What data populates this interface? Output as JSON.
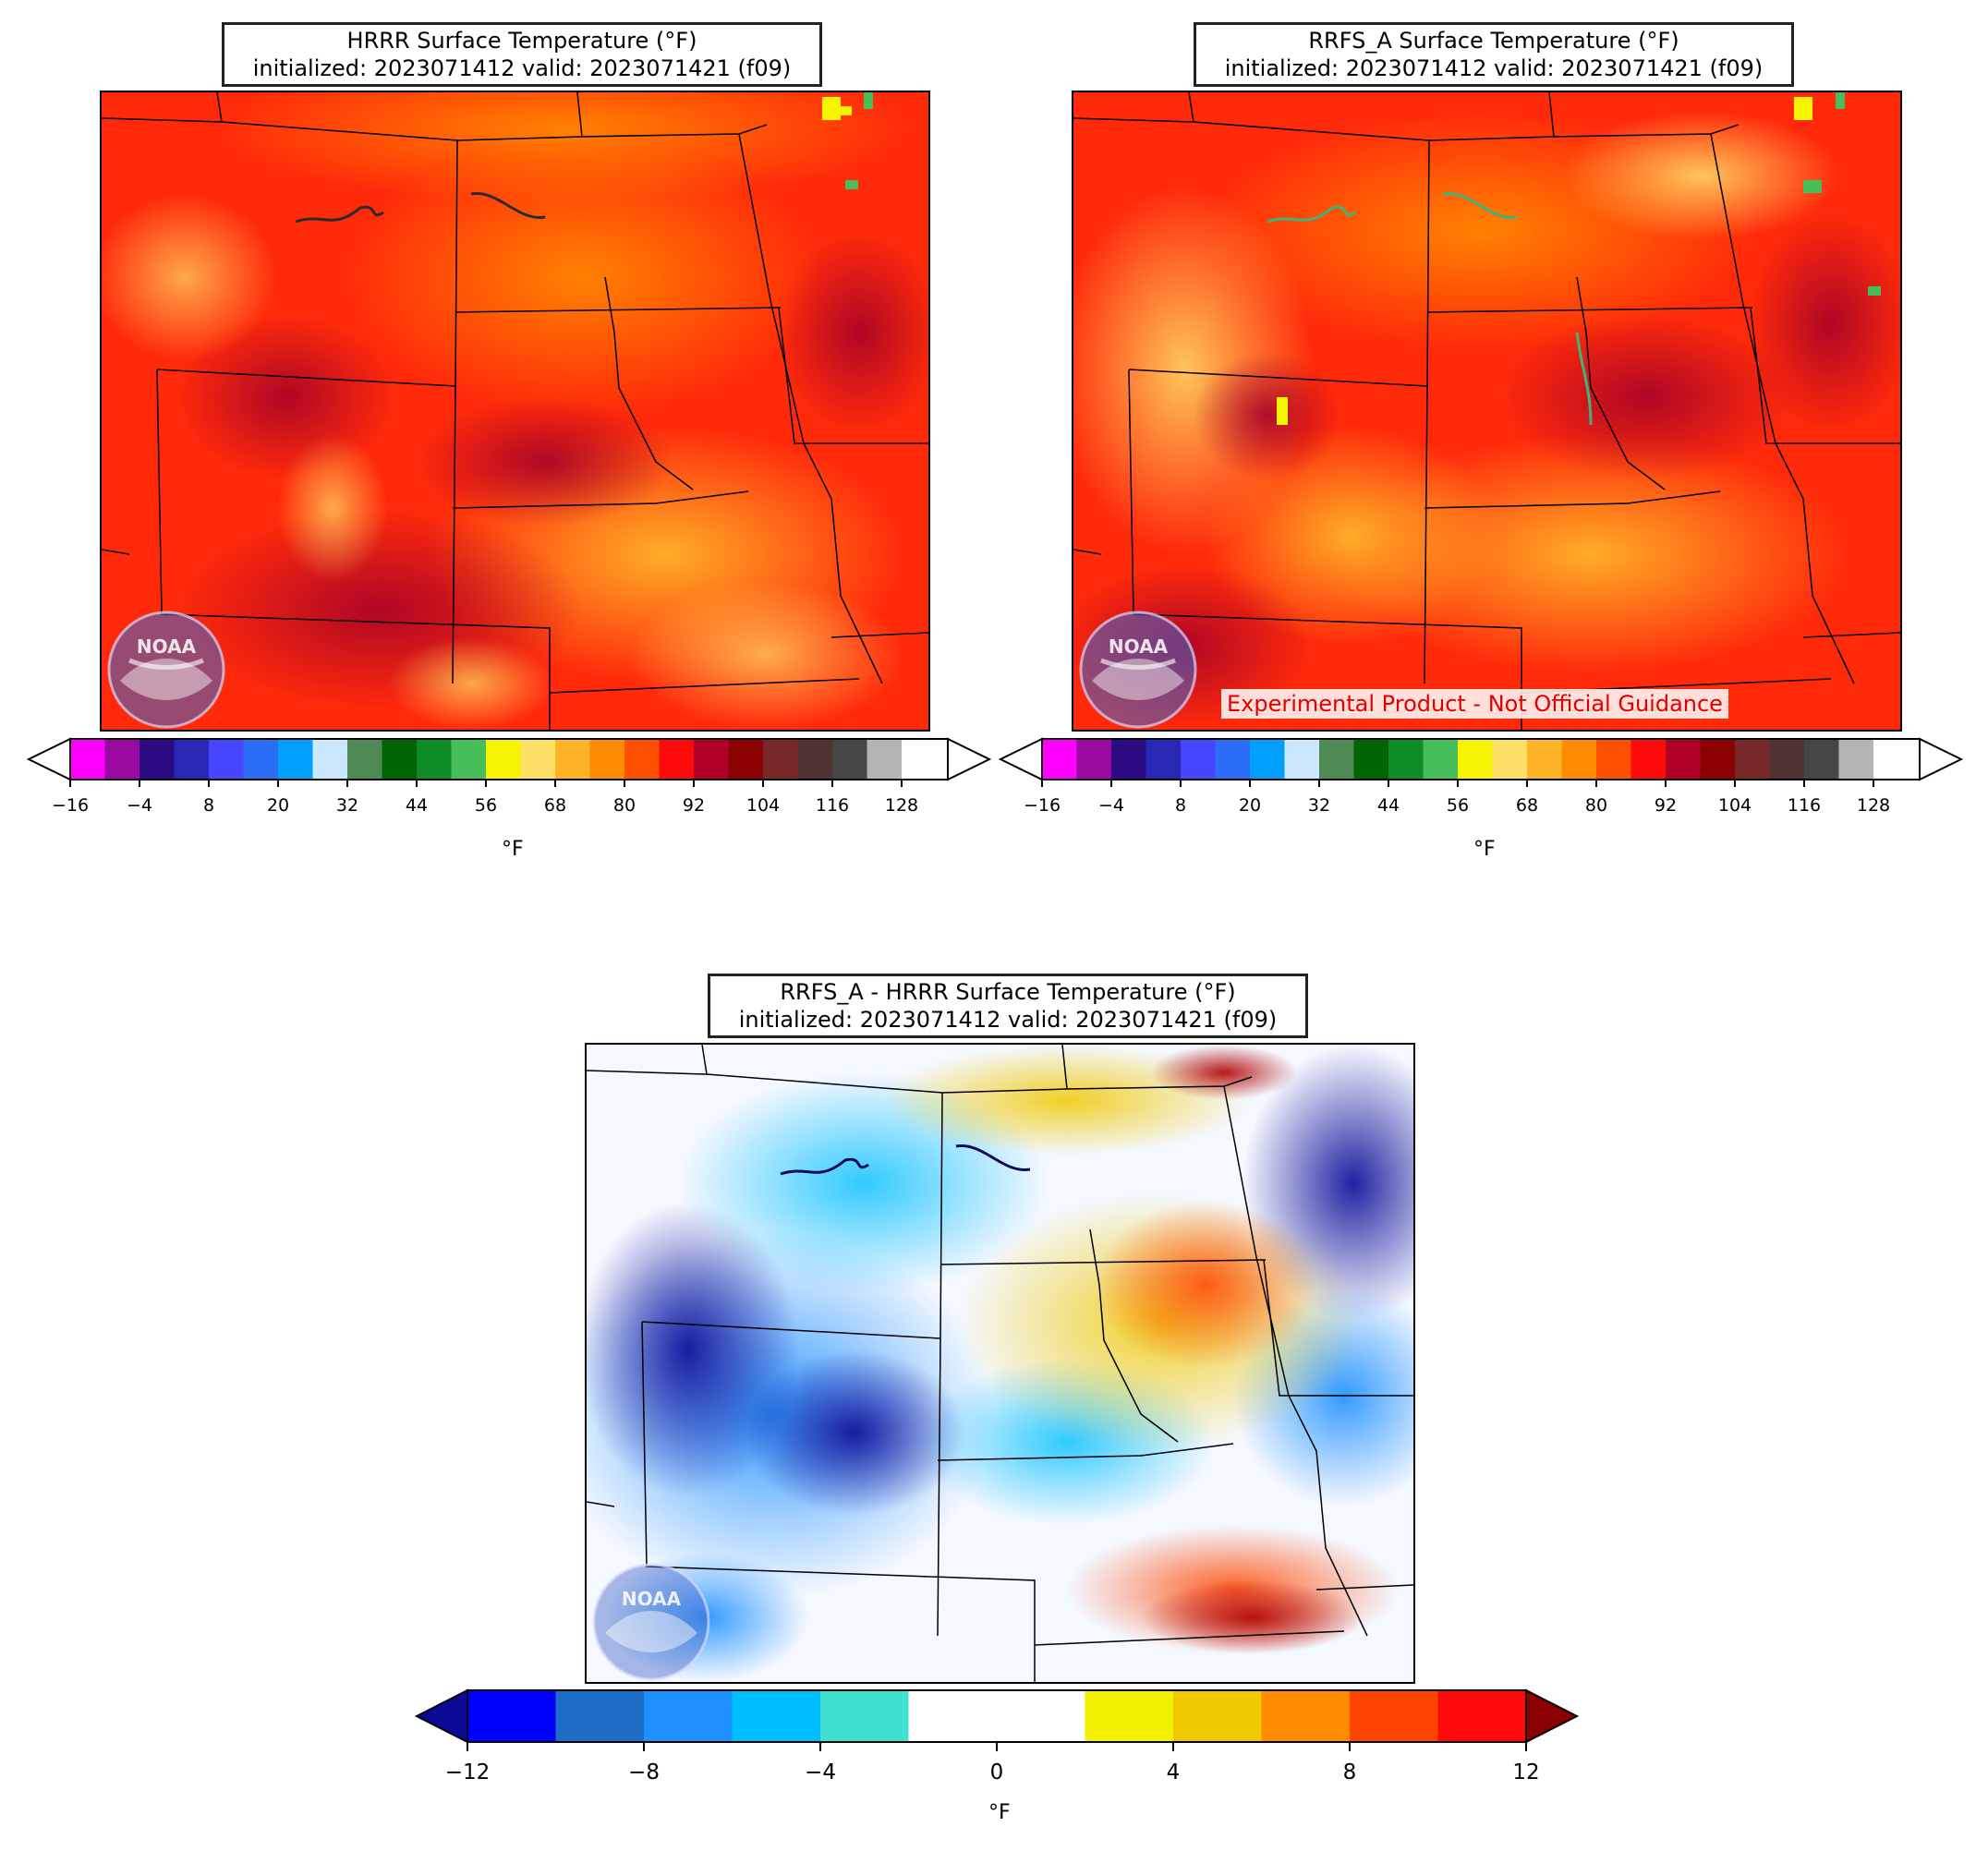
{
  "panels": {
    "hrrr": {
      "title_line1": "HRRR Surface Temperature (°F)",
      "title_line2": "initialized: 2023071412 valid: 2023071421 (f09)",
      "unit": "°F"
    },
    "rrfs": {
      "title_line1": "RRFS_A Surface Temperature (°F)",
      "title_line2": "initialized: 2023071412 valid: 2023071421 (f09)",
      "unit": "°F",
      "warning": "Experimental Product - Not Official Guidance"
    },
    "diff": {
      "title_line1": "RRFS_A - HRRR Surface Temperature (°F)",
      "title_line2": "initialized: 2023071412 valid: 2023071421 (f09)",
      "unit": "°F"
    }
  },
  "logo": {
    "text": "NOAA",
    "icon": "noaa-logo"
  },
  "temp_colorbar": {
    "tick_labels": [
      "−16",
      "−4",
      "8",
      "20",
      "32",
      "44",
      "56",
      "68",
      "80",
      "92",
      "104",
      "116",
      "128"
    ],
    "colors": [
      "#ff00ff",
      "#9a0aa0",
      "#2b0a82",
      "#2828b4",
      "#4646ff",
      "#2b6ef5",
      "#00a0ff",
      "#cce8ff",
      "#4f8a55",
      "#006400",
      "#0e8c28",
      "#46be5a",
      "#f5f500",
      "#ffe066",
      "#ffb428",
      "#ff8c00",
      "#ff5000",
      "#ff0a0a",
      "#b00028",
      "#8b0000",
      "#782828",
      "#503232",
      "#464646",
      "#b4b4b4",
      "#ffffff"
    ]
  },
  "diff_colorbar": {
    "tick_labels": [
      "−12",
      "−8",
      "−4",
      "0",
      "4",
      "8",
      "12"
    ],
    "under_color": "#0a0a96",
    "over_color": "#8b0000",
    "colors": [
      "#0000ff",
      "#1e6ec8",
      "#1e90ff",
      "#00bfff",
      "#40e0d0",
      "#ffffff",
      "#ffffff",
      "#f0f000",
      "#f0c800",
      "#ff8c00",
      "#ff4500",
      "#ff0a0a"
    ]
  }
}
